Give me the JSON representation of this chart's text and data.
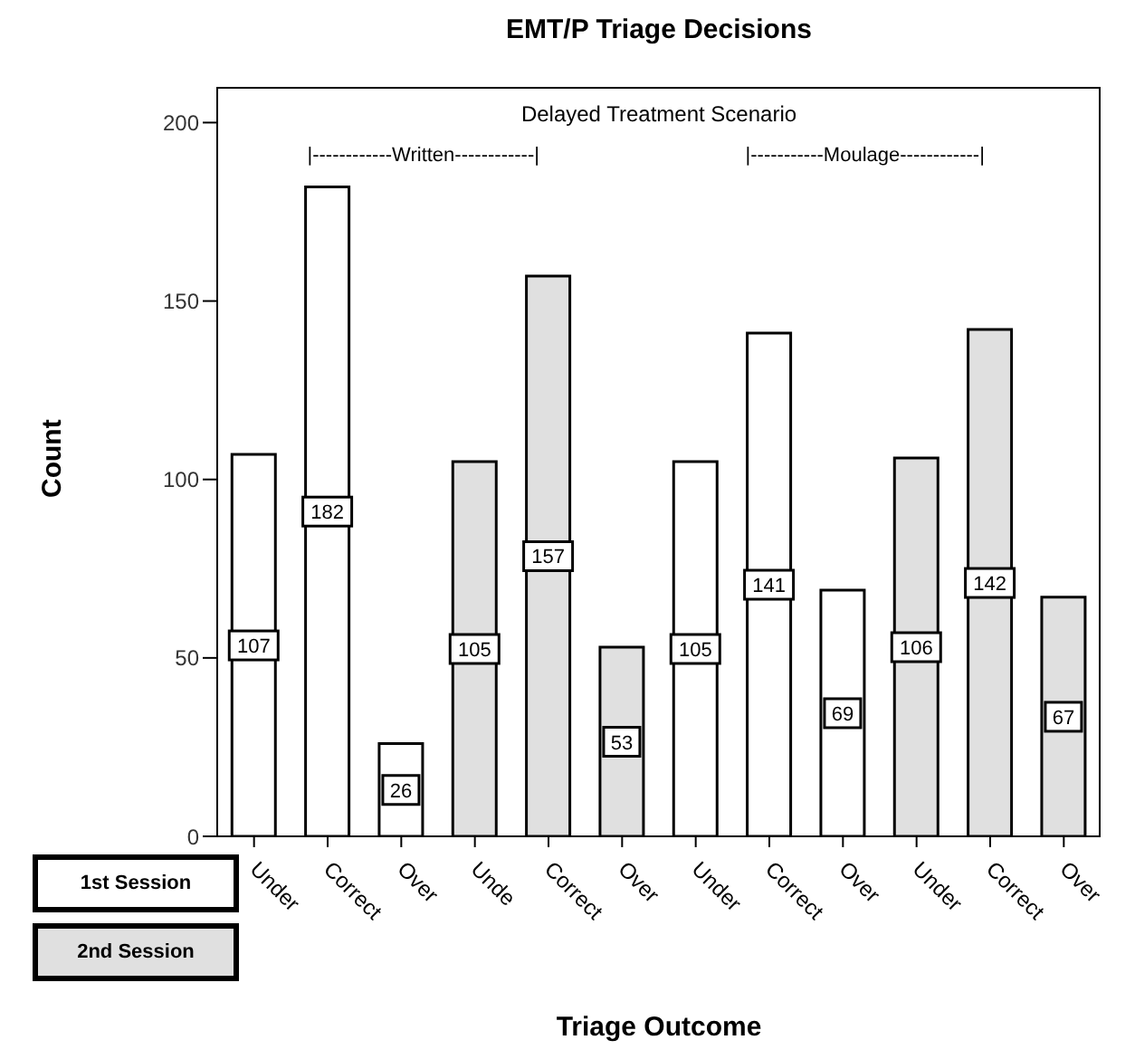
{
  "chart_data": {
    "type": "bar",
    "title": "EMT/P Triage Decisions",
    "xlabel": "Triage Outcome",
    "ylabel": "Count",
    "categories": [
      "Under",
      "Correct",
      "Over",
      "Unde",
      "Correct",
      "Over",
      "Under",
      "Correct",
      "Over",
      "Under",
      "Correct",
      "Over"
    ],
    "series": [
      {
        "name": "1st Session",
        "color": "#ffffff",
        "values": [
          107,
          182,
          26,
          null,
          null,
          null,
          105,
          141,
          69,
          null,
          null,
          null
        ]
      },
      {
        "name": "2nd Session",
        "color": "#e0e0e0",
        "values": [
          null,
          null,
          null,
          105,
          157,
          53,
          null,
          null,
          null,
          106,
          142,
          67
        ]
      }
    ],
    "ylim": [
      0,
      210
    ],
    "yticks": [
      0,
      50,
      100,
      150,
      200
    ],
    "data_labels": true,
    "legend": "bottom left",
    "grid": false,
    "annotations": [
      "Delayed Treatment Scenario",
      "|------------Written------------|",
      "|-----------Moulage------------|"
    ]
  }
}
